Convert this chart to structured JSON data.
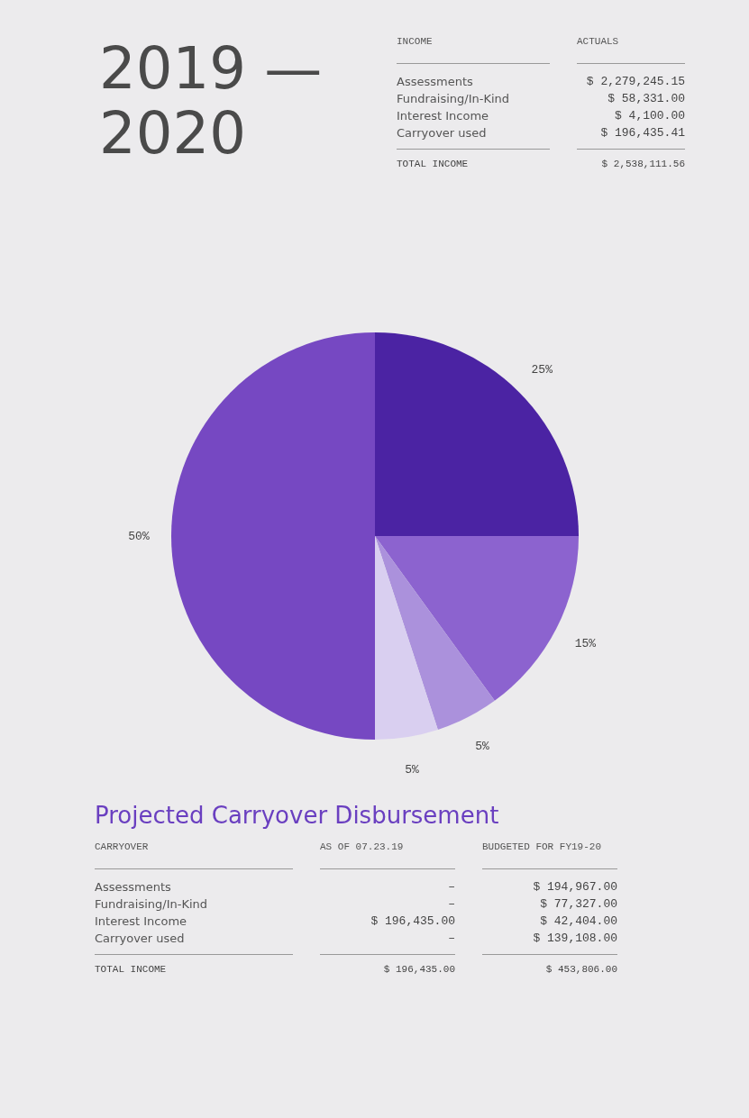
{
  "chart_data": [
    {
      "type": "other",
      "title": "2019 — 2020",
      "annotations": [
        "INCOME",
        "ACTUALS",
        "Assessments",
        "$ 2,279,245.15",
        "Fundraising/In-Kind",
        "$ 58,331.00",
        "Interest Income",
        "$ 4,100.00",
        "Carryover used",
        "$ 196,435.41",
        "TOTAL INCOME",
        "$ 2,538,111.56"
      ]
    },
    {
      "type": "pie",
      "categories": [
        null,
        null,
        null,
        null,
        null
      ],
      "values": [
        25,
        15,
        5,
        5,
        50
      ],
      "colors": [
        "#4b23a3",
        "#8c63cf",
        "#ab91dc",
        "#d9cff0",
        "#7648c2"
      ],
      "value_labels": [
        "25%",
        "15%",
        "5%",
        "5%",
        "50%"
      ]
    },
    {
      "type": "other",
      "title": "Projected Carryover Disbursement",
      "annotations": [
        "CARRYOVER",
        "AS OF 07.23.19",
        "BUDGETED FOR FY19-20",
        "Assessments",
        "–",
        "$ 194,967.00",
        "Fundraising/In-Kind",
        "–",
        "$ 77,327.00",
        "Interest Income",
        "$ 196,435.00",
        "$ 42,404.00",
        "Carryover used",
        "–",
        "$ 139,108.00",
        "TOTAL INCOME",
        "$ 196,435.00",
        "$ 453,806.00"
      ]
    }
  ]
}
